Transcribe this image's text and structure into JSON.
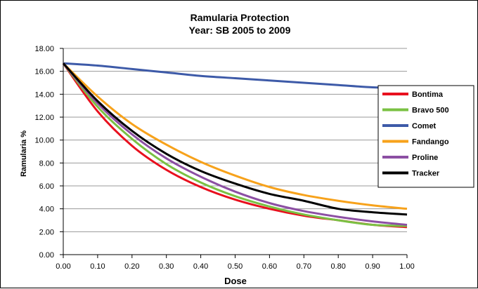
{
  "chart_data": {
    "type": "line",
    "title": "Ramularia Protection",
    "subtitle": "Year: SB 2005 to 2009",
    "xlabel": "Dose",
    "ylabel": "Ramularia %",
    "xlim": [
      0,
      1
    ],
    "ylim": [
      0,
      18
    ],
    "xticks": [
      "0.00",
      "0.10",
      "0.20",
      "0.30",
      "0.40",
      "0.50",
      "0.60",
      "0.70",
      "0.80",
      "0.90",
      "1.00"
    ],
    "yticks": [
      "0.00",
      "2.00",
      "4.00",
      "6.00",
      "8.00",
      "10.00",
      "12.00",
      "14.00",
      "16.00",
      "18.00"
    ],
    "grid": "horizontal",
    "legend_position": "right",
    "x": [
      0.0,
      0.1,
      0.2,
      0.3,
      0.4,
      0.5,
      0.6,
      0.7,
      0.8,
      0.9,
      1.0
    ],
    "series": [
      {
        "name": "Bontima",
        "color": "#e8101e",
        "values": [
          16.7,
          12.5,
          9.5,
          7.4,
          5.9,
          4.8,
          4.0,
          3.4,
          3.0,
          2.6,
          2.4
        ]
      },
      {
        "name": "Bravo 500",
        "color": "#7ac143",
        "values": [
          16.7,
          12.9,
          10.1,
          7.9,
          6.3,
          5.1,
          4.2,
          3.5,
          3.0,
          2.6,
          2.5
        ]
      },
      {
        "name": "Comet",
        "color": "#3d5aa8",
        "values": [
          16.7,
          16.5,
          16.2,
          15.9,
          15.6,
          15.4,
          15.2,
          15.0,
          14.8,
          14.6,
          14.5
        ]
      },
      {
        "name": "Fandango",
        "color": "#f7a21b",
        "values": [
          16.7,
          13.8,
          11.4,
          9.6,
          8.1,
          6.9,
          5.9,
          5.2,
          4.7,
          4.3,
          4.0
        ]
      },
      {
        "name": "Proline",
        "color": "#8c4fa3",
        "values": [
          16.7,
          13.2,
          10.5,
          8.4,
          6.8,
          5.5,
          4.5,
          3.8,
          3.3,
          2.9,
          2.6
        ]
      },
      {
        "name": "Tracker",
        "color": "#000000",
        "values": [
          16.7,
          13.4,
          10.8,
          8.8,
          7.3,
          6.2,
          5.3,
          4.7,
          4.0,
          3.7,
          3.5
        ]
      }
    ]
  }
}
